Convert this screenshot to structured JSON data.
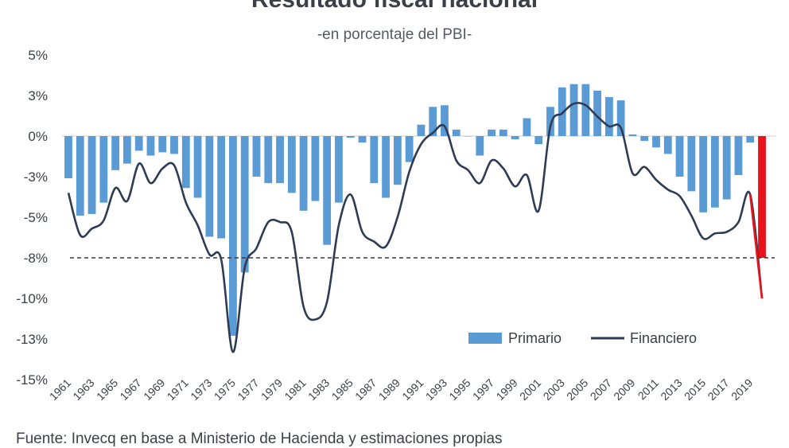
{
  "header": {
    "title": "Resultado fiscal nacional",
    "subtitle": "-en porcentaje del PBI-"
  },
  "footer": {
    "source": "Fuente: Invecq en base a Ministerio de Hacienda y estimaciones propias"
  },
  "colors": {
    "primario": "#5b9bd5",
    "primario_highlight": "#e8141b",
    "financiero": "#2e3b55",
    "reference_line": "#3a3a3a",
    "text": "#3b3f47"
  },
  "chart_data": {
    "type": "bar",
    "title": "Resultado fiscal nacional",
    "subtitle": "-en porcentaje del PBI-",
    "ylim": [
      -15,
      5
    ],
    "ytick_values": [
      5,
      2.5,
      0,
      -2.5,
      -5,
      -7.5,
      -10,
      -12.5,
      -15
    ],
    "ytick_labels": [
      "5%",
      "3%",
      "0%",
      "-3%",
      "-5%",
      "-8%",
      "-10%",
      "-13%",
      "-15%"
    ],
    "reference_line": {
      "value": -7.5,
      "style": "dashed"
    },
    "legend": {
      "position": "bottom-right",
      "entries": [
        "Primario",
        "Financiero"
      ]
    },
    "x_tick_labels": [
      "1961",
      "1963",
      "1965",
      "1967",
      "1969",
      "1971",
      "1973",
      "1975",
      "1977",
      "1979",
      "1981",
      "1983",
      "1985",
      "1987",
      "1989",
      "1991",
      "1993",
      "1995",
      "1997",
      "1999",
      "2001",
      "2003",
      "2005",
      "2007",
      "2009",
      "2011",
      "2013",
      "2015",
      "2017",
      "2019"
    ],
    "categories": [
      1961,
      1962,
      1963,
      1964,
      1965,
      1966,
      1967,
      1968,
      1969,
      1970,
      1971,
      1972,
      1973,
      1974,
      1975,
      1976,
      1977,
      1978,
      1979,
      1980,
      1981,
      1982,
      1983,
      1984,
      1985,
      1986,
      1987,
      1988,
      1989,
      1990,
      1991,
      1992,
      1993,
      1994,
      1995,
      1996,
      1997,
      1998,
      1999,
      2000,
      2001,
      2002,
      2003,
      2004,
      2005,
      2006,
      2007,
      2008,
      2009,
      2010,
      2011,
      2012,
      2013,
      2014,
      2015,
      2016,
      2017,
      2018,
      2019,
      2020
    ],
    "highlight_category": 2020,
    "series": [
      {
        "name": "Primario",
        "type": "bar",
        "values": [
          -2.6,
          -4.9,
          -4.8,
          -4.1,
          -2.1,
          -1.7,
          -0.9,
          -1.2,
          -1.0,
          -1.1,
          -3.2,
          -3.8,
          -6.2,
          -6.3,
          -12.3,
          -8.4,
          -2.5,
          -2.9,
          -2.9,
          -3.5,
          -4.6,
          -4.0,
          -6.7,
          -4.1,
          -0.1,
          -0.4,
          -2.9,
          -3.8,
          -3.0,
          -1.6,
          0.7,
          1.8,
          1.9,
          0.4,
          0.0,
          -1.2,
          0.4,
          0.4,
          -0.2,
          1.1,
          -0.5,
          1.8,
          3.0,
          3.2,
          3.2,
          2.8,
          2.4,
          2.2,
          0.1,
          -0.3,
          -0.7,
          -1.1,
          -2.5,
          -3.4,
          -4.7,
          -4.4,
          -3.9,
          -2.4,
          -0.4,
          -7.5
        ]
      },
      {
        "name": "Financiero",
        "type": "line",
        "values": [
          -3.5,
          -6.1,
          -5.7,
          -5.2,
          -3.2,
          -4.0,
          -1.7,
          -2.9,
          -2.0,
          -1.8,
          -4.1,
          -5.5,
          -7.3,
          -7.6,
          -13.3,
          -8.1,
          -6.9,
          -5.3,
          -5.3,
          -5.9,
          -10.5,
          -11.3,
          -10.2,
          -5.5,
          -3.6,
          -5.9,
          -6.5,
          -6.8,
          -5.0,
          -2.2,
          -0.5,
          0.2,
          0.6,
          -1.5,
          -2.1,
          -2.9,
          -1.5,
          -2.0,
          -3.1,
          -2.4,
          -4.6,
          0.6,
          1.4,
          2.0,
          1.9,
          1.2,
          0.6,
          0.5,
          -2.3,
          -1.9,
          -2.7,
          -3.3,
          -3.7,
          -4.9,
          -6.3,
          -6.0,
          -5.9,
          -5.3,
          -3.6,
          -10.0
        ]
      }
    ]
  }
}
